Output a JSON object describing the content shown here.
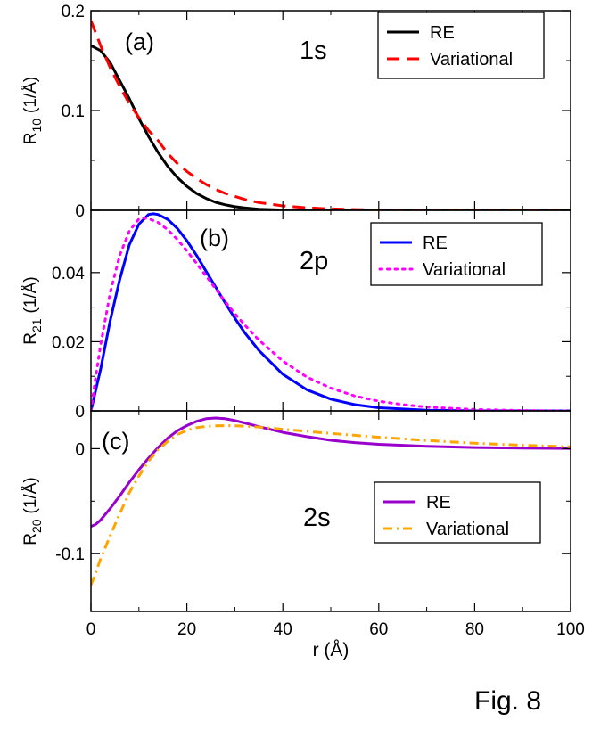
{
  "figure_label": "Fig. 8",
  "chart_data": [
    {
      "type": "line",
      "panel": "(a)",
      "orbital": "1s",
      "ylabel_main": "R",
      "ylabel_sub": "10",
      "ylabel_unit": "(1/Å)",
      "xlim": [
        0,
        100
      ],
      "ylim": [
        0,
        0.2
      ],
      "yticks": [
        0,
        0.1,
        0.2
      ],
      "ytick_labels": [
        "0",
        "0.1",
        "0.2"
      ],
      "legend_position": "top-right",
      "series": [
        {
          "name": "RE",
          "color": "#000000",
          "style": "solid",
          "x": [
            0,
            2,
            4,
            6,
            8,
            10,
            12,
            14,
            16,
            18,
            20,
            22,
            24,
            26,
            28,
            30,
            32,
            35,
            40,
            50,
            60,
            80,
            100
          ],
          "y": [
            0.165,
            0.16,
            0.148,
            0.13,
            0.112,
            0.092,
            0.074,
            0.058,
            0.044,
            0.033,
            0.024,
            0.017,
            0.012,
            0.008,
            0.0055,
            0.0037,
            0.0024,
            0.0012,
            0.0004,
            0,
            0,
            0,
            0
          ]
        },
        {
          "name": "Variational",
          "color": "#ff0000",
          "style": "dashed",
          "x": [
            0,
            2,
            4,
            6,
            8,
            10,
            12,
            14,
            16,
            18,
            20,
            22,
            24,
            26,
            28,
            30,
            32,
            35,
            40,
            45,
            50,
            55,
            60,
            70,
            80,
            100
          ],
          "y": [
            0.19,
            0.165,
            0.143,
            0.124,
            0.107,
            0.093,
            0.08,
            0.07,
            0.057,
            0.047,
            0.039,
            0.032,
            0.026,
            0.021,
            0.017,
            0.014,
            0.011,
            0.0078,
            0.0045,
            0.0026,
            0.0014,
            0.0008,
            0.0004,
            0.0001,
            0,
            0
          ]
        }
      ]
    },
    {
      "type": "line",
      "panel": "(b)",
      "orbital": "2p",
      "ylabel_main": "R",
      "ylabel_sub": "21",
      "ylabel_unit": "(1/Å)",
      "xlim": [
        0,
        100
      ],
      "ylim": [
        0,
        0.058
      ],
      "yticks": [
        0,
        0.02,
        0.04
      ],
      "ytick_labels": [
        "0",
        "0.02",
        "0.04"
      ],
      "legend_position": "top-right",
      "series": [
        {
          "name": "RE",
          "color": "#0000ff",
          "style": "solid",
          "x": [
            0,
            1,
            2,
            4,
            6,
            8,
            10,
            12,
            13,
            14,
            16,
            18,
            20,
            22,
            24,
            26,
            28,
            30,
            32,
            35,
            40,
            45,
            50,
            55,
            60,
            70,
            80,
            90,
            100
          ],
          "y": [
            0,
            0.006,
            0.012,
            0.026,
            0.038,
            0.048,
            0.054,
            0.0568,
            0.057,
            0.0568,
            0.0554,
            0.0528,
            0.0492,
            0.045,
            0.0404,
            0.0358,
            0.0312,
            0.0268,
            0.0227,
            0.0175,
            0.0106,
            0.0061,
            0.0034,
            0.0018,
            0.0009,
            0.0002,
            0,
            0,
            0
          ]
        },
        {
          "name": "Variational",
          "color": "#ff00ff",
          "style": "dotted",
          "x": [
            0,
            1,
            2,
            4,
            6,
            8,
            10,
            11,
            12,
            14,
            16,
            18,
            20,
            22,
            24,
            26,
            28,
            30,
            32,
            35,
            40,
            45,
            50,
            55,
            60,
            65,
            70,
            80,
            90,
            100
          ],
          "y": [
            0,
            0.01,
            0.019,
            0.034,
            0.045,
            0.052,
            0.0555,
            0.0558,
            0.0556,
            0.0545,
            0.0524,
            0.0496,
            0.0463,
            0.0427,
            0.039,
            0.0353,
            0.0316,
            0.0281,
            0.0249,
            0.0205,
            0.0144,
            0.0098,
            0.0066,
            0.0043,
            0.0028,
            0.0018,
            0.0011,
            0.0004,
            0.0001,
            0
          ]
        }
      ]
    },
    {
      "type": "line",
      "panel": "(c)",
      "orbital": "2s",
      "ylabel_main": "R",
      "ylabel_sub": "20",
      "ylabel_unit": "(1/Å)",
      "xlabel": "r (Å)",
      "xlim": [
        0,
        100
      ],
      "ylim": [
        -0.155,
        0.036
      ],
      "xticks": [
        0,
        20,
        40,
        60,
        80,
        100
      ],
      "xtick_labels": [
        "0",
        "20",
        "40",
        "60",
        "80",
        "100"
      ],
      "yticks": [
        -0.1,
        0
      ],
      "ytick_labels": [
        "-0.1",
        "0"
      ],
      "legend_position": "lower-right",
      "series": [
        {
          "name": "RE",
          "color": "#9900cc",
          "style": "solid",
          "x": [
            0,
            1,
            2,
            4,
            6,
            8,
            10,
            12,
            14,
            16,
            18,
            20,
            22,
            24,
            26,
            28,
            30,
            32,
            35,
            40,
            45,
            50,
            55,
            60,
            70,
            80,
            90,
            100
          ],
          "y": [
            -0.074,
            -0.072,
            -0.068,
            -0.057,
            -0.045,
            -0.032,
            -0.02,
            -0.009,
            0.001,
            0.01,
            0.017,
            0.022,
            0.026,
            0.0285,
            0.0292,
            0.0285,
            0.0268,
            0.0245,
            0.021,
            0.0155,
            0.0115,
            0.008,
            0.0058,
            0.0042,
            0.0022,
            0.0011,
            0.0005,
            0.0002
          ]
        },
        {
          "name": "Variational",
          "color": "#ffa500",
          "style": "dashdot",
          "x": [
            0,
            1,
            2,
            4,
            6,
            8,
            10,
            12,
            14,
            16,
            18,
            20,
            22,
            24,
            26,
            28,
            30,
            32,
            35,
            40,
            45,
            50,
            55,
            60,
            70,
            80,
            90,
            100
          ],
          "y": [
            -0.13,
            -0.118,
            -0.105,
            -0.083,
            -0.062,
            -0.042,
            -0.026,
            -0.012,
            -0.001,
            0.007,
            0.0135,
            0.0175,
            0.02,
            0.0212,
            0.0218,
            0.0219,
            0.0218,
            0.0214,
            0.0206,
            0.0185,
            0.0165,
            0.0145,
            0.0127,
            0.011,
            0.0078,
            0.0052,
            0.0032,
            0.0018
          ]
        }
      ]
    }
  ]
}
